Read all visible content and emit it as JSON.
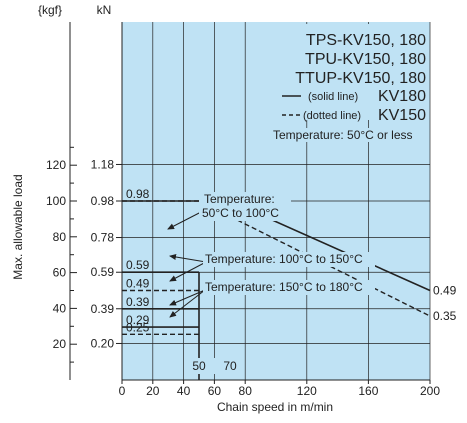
{
  "chart_data": {
    "type": "line",
    "unit_labels": {
      "kgf": "{kgf}",
      "kn": "kN"
    },
    "xlabel": "Chain speed in m/min",
    "ylabel": "Max. allowable load",
    "xlim": [
      0,
      200
    ],
    "ylim_kn": [
      0,
      1.96
    ],
    "grid": true,
    "x_ticks": [
      0,
      20,
      40,
      60,
      80,
      120,
      160,
      200
    ],
    "x_tick_labels": [
      "0",
      "20",
      "40",
      "60",
      "80",
      "120",
      "160",
      "200"
    ],
    "kgf_ticks": [
      20,
      40,
      60,
      80,
      100,
      120
    ],
    "kgf_tick_labels": [
      "20",
      "40",
      "60",
      "80",
      "100",
      "120"
    ],
    "kn_ticks": [
      0.2,
      0.39,
      0.59,
      0.78,
      0.98,
      1.18
    ],
    "kn_tick_labels": [
      "0.20",
      "0.39",
      "0.59",
      "0.78",
      "0.98",
      "1.18"
    ],
    "legend": {
      "titles": [
        "TPS-KV150, 180",
        "TPU-KV150, 180",
        "TTUP-KV150, 180"
      ],
      "solid_note": "(solid line)",
      "solid_name": "KV180",
      "dotted_note": "(dotted line)",
      "dotted_name": "KV150"
    },
    "series": [
      {
        "name": "KV180",
        "style": "solid",
        "x": [
          0,
          70,
          200
        ],
        "y": [
          0.98,
          0.98,
          0.49
        ]
      },
      {
        "name": "KV150",
        "style": "dotted",
        "x": [
          0,
          50,
          200
        ],
        "y": [
          0.98,
          0.98,
          0.35
        ]
      }
    ],
    "low_temp_segments": [
      {
        "style": "solid",
        "y": 0.59,
        "x_end": 50
      },
      {
        "style": "dotted",
        "y": 0.49,
        "x_end": 50
      },
      {
        "style": "solid",
        "y": 0.39,
        "x_end": 50
      },
      {
        "style": "solid",
        "y": 0.29,
        "x_end": 50
      },
      {
        "style": "dotted",
        "y": 0.25,
        "x_end": 50
      }
    ],
    "data_labels": [
      "0.98",
      "0.59",
      "0.49",
      "0.39",
      "0.29",
      "0.25"
    ],
    "end_labels": [
      "0.49",
      "0.35"
    ],
    "marker_labels": [
      "50",
      "70"
    ],
    "annotations": {
      "temp1": "Temperature: 50°C or less",
      "temp2_line1": "Temperature:",
      "temp2_line2": "50°C to 100°C",
      "temp3": "Temperature: 100°C to 150°C",
      "temp4": "Temperature: 150°C to 180°C"
    }
  }
}
